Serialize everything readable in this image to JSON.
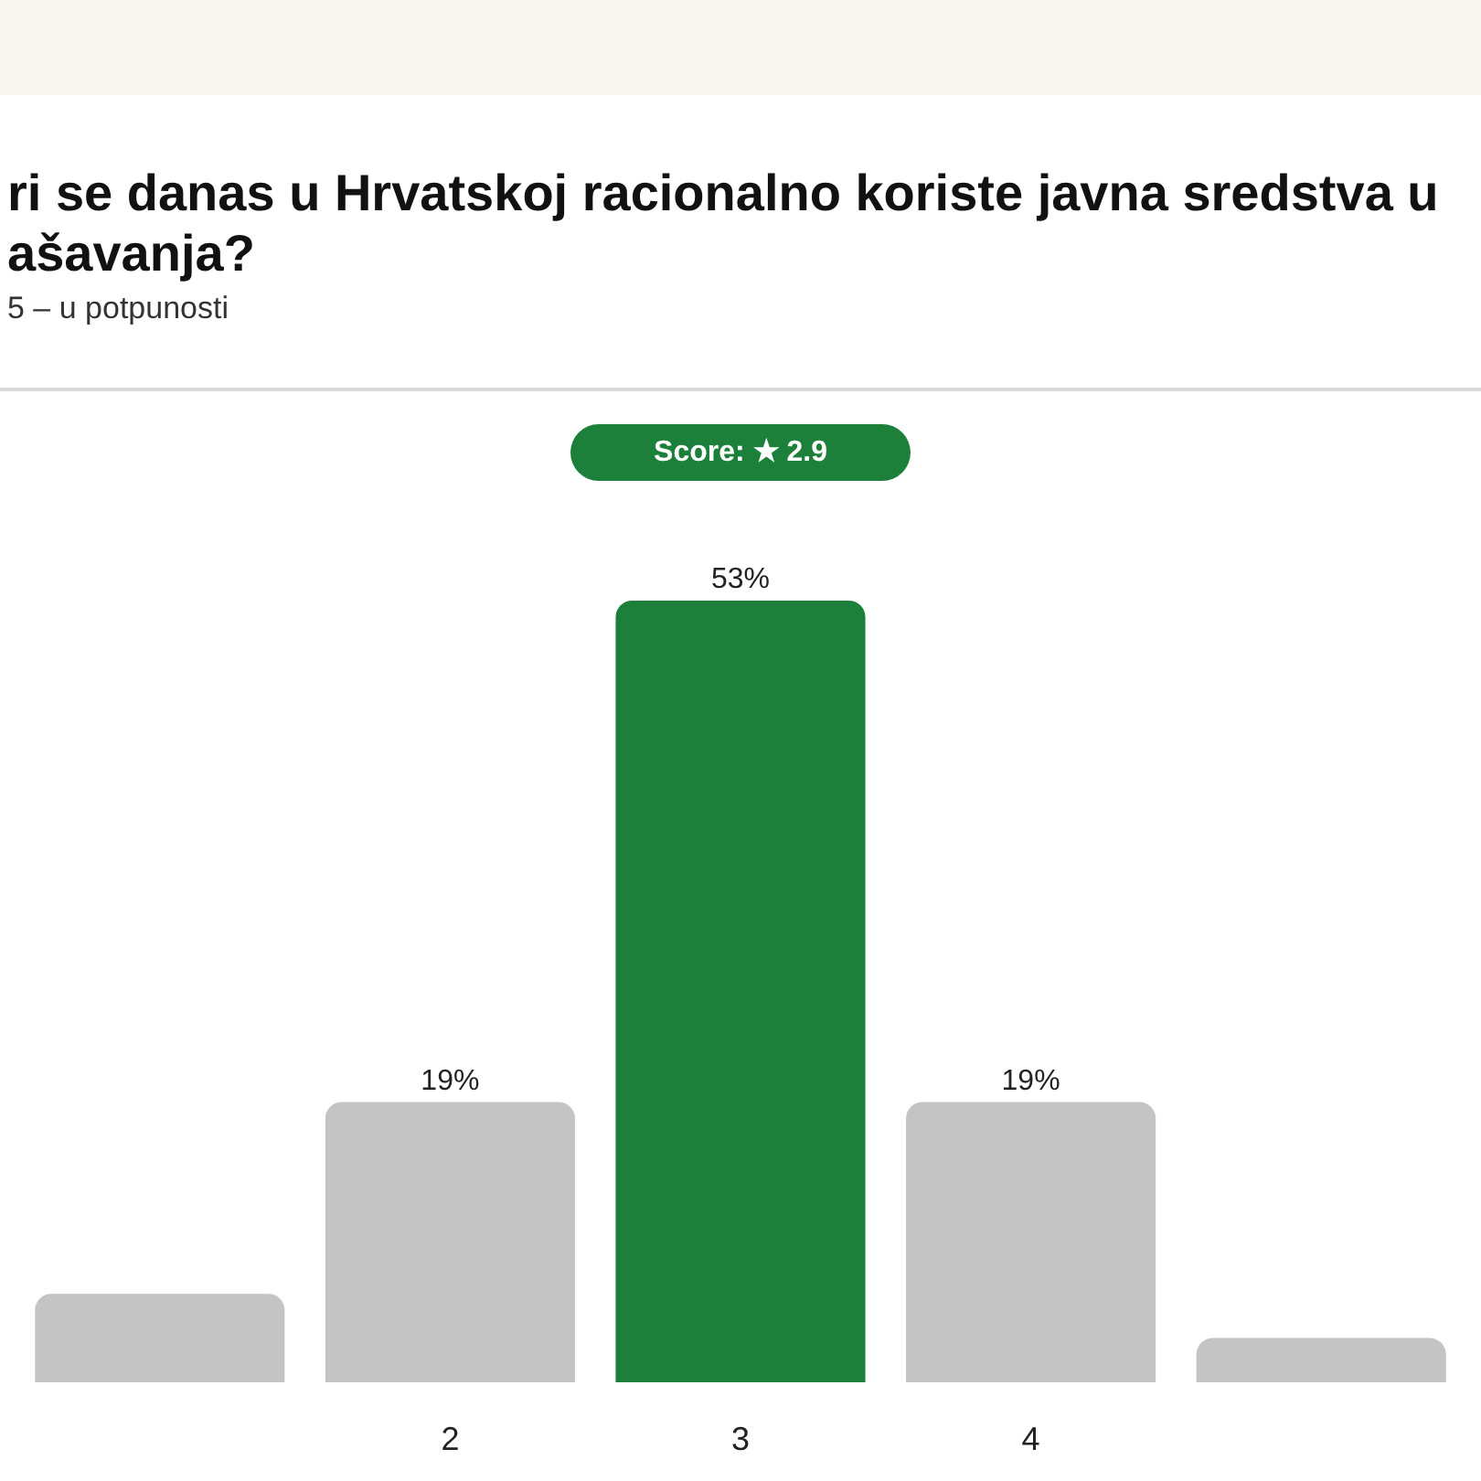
{
  "chart_data": {
    "type": "bar",
    "title": "ri se danas u Hrvatskoj racionalno koriste javna sredstva u\našavanja?",
    "subtitle": "5 – u potpunosti",
    "annotations": [
      "Score: ★ 2.9"
    ],
    "categories": [
      null,
      "2",
      "3",
      "4",
      null
    ],
    "values": [
      6,
      19,
      53,
      19,
      3
    ],
    "colors": [
      "#c4c4c4",
      "#c4c4c4",
      "#1c7f3a",
      "#c4c4c4",
      "#c4c4c4"
    ],
    "value_labels": [
      null,
      "19%",
      "53%",
      "19%",
      null
    ]
  }
}
